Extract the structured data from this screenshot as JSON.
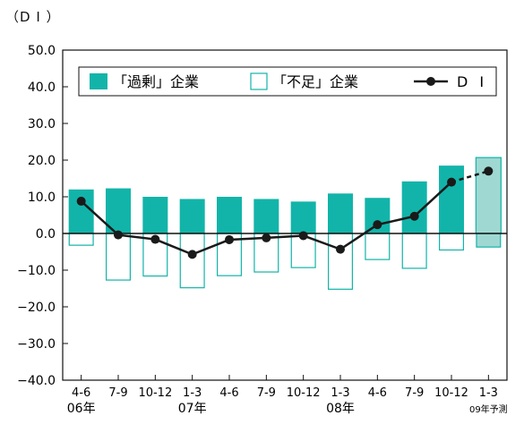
{
  "chart_data": {
    "type": "bar",
    "unit_label": "（D I ）",
    "categories": [
      "4-6",
      "7-9",
      "10-12",
      "1-3",
      "4-6",
      "7-9",
      "10-12",
      "1-3",
      "4-6",
      "7-9",
      "10-12",
      "1-3"
    ],
    "year_labels": [
      {
        "index": 0,
        "text": "06年"
      },
      {
        "index": 3,
        "text": "07年"
      },
      {
        "index": 7,
        "text": "08年"
      },
      {
        "index": 11,
        "text": "09年予測"
      }
    ],
    "forecast_index": 11,
    "ylim": [
      -40,
      50
    ],
    "y_ticks": [
      "50.0",
      "40.0",
      "30.0",
      "20.0",
      "10.0",
      "0.0",
      "−10.0",
      "−20.0",
      "−30.0",
      "−40.0"
    ],
    "y_tick_values": [
      50,
      40,
      30,
      20,
      10,
      0,
      -10,
      -20,
      -30,
      -40
    ],
    "series": [
      {
        "name": "「過剰」企業",
        "kind": "bar-filled",
        "values": [
          12,
          12.3,
          10,
          9.4,
          10,
          9.4,
          8.7,
          10.9,
          9.7,
          14.2,
          18.5,
          20.7
        ]
      },
      {
        "name": "「不足」企業",
        "kind": "bar-outline",
        "values": [
          -3.2,
          -12.7,
          -11.6,
          -14.8,
          -11.5,
          -10.5,
          -9.3,
          -15.2,
          -7.1,
          -9.5,
          -4.5,
          -3.7
        ]
      },
      {
        "name": "D I",
        "kind": "line",
        "values": [
          8.8,
          -0.4,
          -1.6,
          -5.7,
          -1.7,
          -1.2,
          -0.6,
          -4.3,
          2.4,
          4.7,
          14,
          17
        ]
      }
    ],
    "colors": {
      "surplus_fill": "#12b3a8",
      "shortage_stroke": "#12b3a8",
      "forecast_fill": "#9fd8d2",
      "line": "#1a1a1a"
    },
    "legend_placement": "top",
    "grid": false
  }
}
